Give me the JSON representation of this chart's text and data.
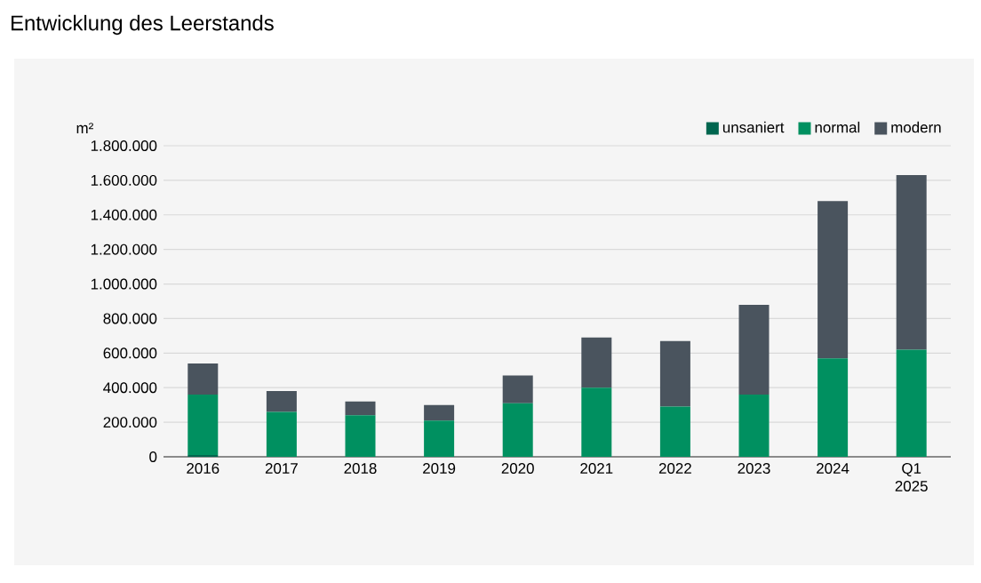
{
  "chart_data": {
    "type": "bar",
    "title": "Entwicklung des Leerstands",
    "ylabel": "m²",
    "stacked": true,
    "categories": [
      "2016",
      "2017",
      "2018",
      "2019",
      "2020",
      "2021",
      "2022",
      "2023",
      "2024",
      "Q1 2025"
    ],
    "series": [
      {
        "name": "unsaniert",
        "color": "#00664f",
        "values": [
          10000,
          0,
          0,
          0,
          0,
          0,
          0,
          0,
          0,
          0
        ]
      },
      {
        "name": "normal",
        "color": "#009060",
        "values": [
          350000,
          260000,
          240000,
          210000,
          310000,
          400000,
          290000,
          360000,
          570000,
          620000
        ]
      },
      {
        "name": "modern",
        "color": "#4a545e",
        "values": [
          180000,
          120000,
          80000,
          90000,
          160000,
          290000,
          380000,
          520000,
          910000,
          1010000
        ]
      }
    ],
    "ylim": [
      0,
      1800000
    ],
    "yticks": [
      {
        "value": 0,
        "label": "0"
      },
      {
        "value": 200000,
        "label": "200.000"
      },
      {
        "value": 400000,
        "label": "400.000"
      },
      {
        "value": 600000,
        "label": "600.000"
      },
      {
        "value": 800000,
        "label": "800.000"
      },
      {
        "value": 1000000,
        "label": "1.000.000"
      },
      {
        "value": 1200000,
        "label": "1.200.000"
      },
      {
        "value": 1400000,
        "label": "1.400.000"
      },
      {
        "value": 1600000,
        "label": "1.600.000"
      },
      {
        "value": 1800000,
        "label": "1.800.000"
      }
    ],
    "grid": "y",
    "legend": "top right"
  }
}
